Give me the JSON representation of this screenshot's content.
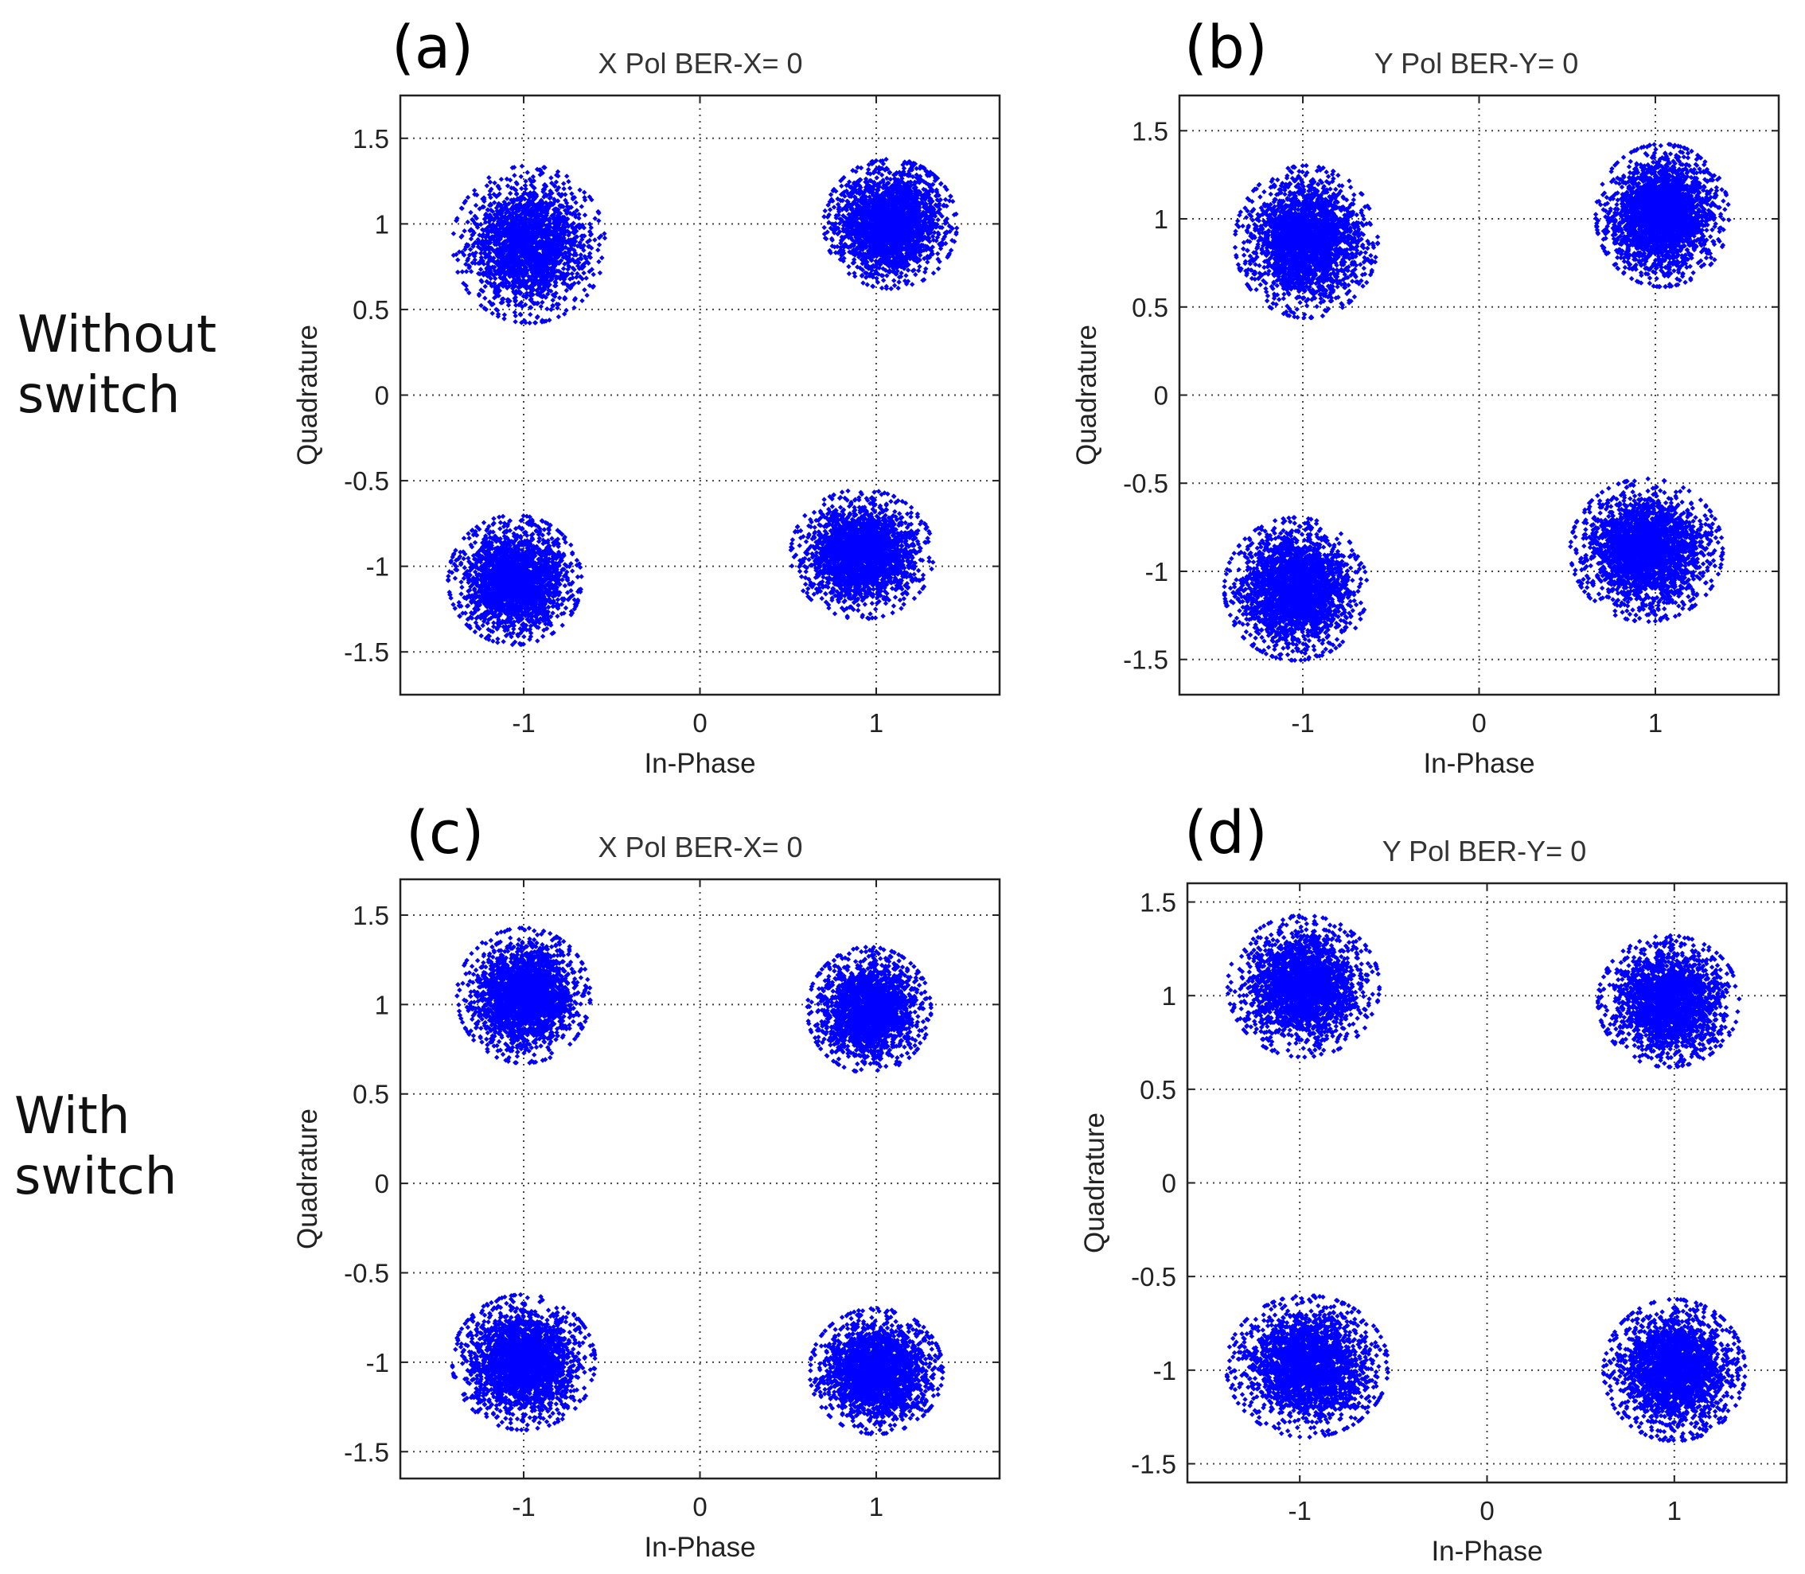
{
  "row_labels": {
    "top_line1": "Without",
    "top_line2": "switch",
    "bottom_line1": "With",
    "bottom_line2": "switch"
  },
  "style": {
    "marker_color": "#0000ff"
  },
  "chart_data": [
    {
      "type": "scatter",
      "panel": "(a)",
      "title": "X Pol   BER-X= 0",
      "xlabel": "In-Phase",
      "ylabel": "Quadrature",
      "xlim": [
        -1.7,
        1.7
      ],
      "ylim": [
        -1.75,
        1.75
      ],
      "xticks": [
        -1,
        0,
        1
      ],
      "yticks": [
        -1.5,
        -1,
        -0.5,
        0,
        0.5,
        1,
        1.5
      ],
      "grid": true,
      "clusters": [
        {
          "name": "Q2",
          "cx": -0.97,
          "cy": 0.88,
          "spread_x": 0.16,
          "spread_y": 0.17,
          "points": 2200
        },
        {
          "name": "Q1",
          "cx": 1.08,
          "cy": 1.0,
          "spread_x": 0.14,
          "spread_y": 0.14,
          "points": 2600
        },
        {
          "name": "Q3",
          "cx": -1.05,
          "cy": -1.08,
          "spread_x": 0.14,
          "spread_y": 0.14,
          "points": 2400
        },
        {
          "name": "Q4",
          "cx": 0.92,
          "cy": -0.93,
          "spread_x": 0.15,
          "spread_y": 0.14,
          "points": 2400
        }
      ]
    },
    {
      "type": "scatter",
      "panel": "(b)",
      "title": "Y Pol   BER-Y= 0",
      "xlabel": "In-Phase",
      "ylabel": "Quadrature",
      "xlim": [
        -1.7,
        1.7
      ],
      "ylim": [
        -1.7,
        1.7
      ],
      "xticks": [
        -1,
        0,
        1
      ],
      "yticks": [
        -1.5,
        -1,
        -0.5,
        0,
        0.5,
        1,
        1.5
      ],
      "grid": true,
      "clusters": [
        {
          "name": "Q2",
          "cx": -0.98,
          "cy": 0.87,
          "spread_x": 0.15,
          "spread_y": 0.16,
          "points": 2600
        },
        {
          "name": "Q1",
          "cx": 1.04,
          "cy": 1.02,
          "spread_x": 0.14,
          "spread_y": 0.15,
          "points": 2700
        },
        {
          "name": "Q3",
          "cx": -1.04,
          "cy": -1.1,
          "spread_x": 0.15,
          "spread_y": 0.15,
          "points": 2600
        },
        {
          "name": "Q4",
          "cx": 0.95,
          "cy": -0.88,
          "spread_x": 0.16,
          "spread_y": 0.15,
          "points": 2600
        }
      ]
    },
    {
      "type": "scatter",
      "panel": "(c)",
      "title": "X Pol   BER-X= 0",
      "xlabel": "In-Phase",
      "ylabel": "Quadrature",
      "xlim": [
        -1.7,
        1.7
      ],
      "ylim": [
        -1.65,
        1.7
      ],
      "xticks": [
        -1,
        0,
        1
      ],
      "yticks": [
        -1.5,
        -1,
        -0.5,
        0,
        0.5,
        1,
        1.5
      ],
      "grid": true,
      "clusters": [
        {
          "name": "Q2",
          "cx": -1.0,
          "cy": 1.05,
          "spread_x": 0.14,
          "spread_y": 0.14,
          "points": 2400
        },
        {
          "name": "Q1",
          "cx": 0.96,
          "cy": 0.97,
          "spread_x": 0.13,
          "spread_y": 0.13,
          "points": 2200
        },
        {
          "name": "Q3",
          "cx": -1.0,
          "cy": -1.0,
          "spread_x": 0.15,
          "spread_y": 0.14,
          "points": 2400
        },
        {
          "name": "Q4",
          "cx": 1.0,
          "cy": -1.05,
          "spread_x": 0.14,
          "spread_y": 0.13,
          "points": 2400
        }
      ]
    },
    {
      "type": "scatter",
      "panel": "(d)",
      "title": "Y Pol   BER-Y= 0",
      "xlabel": "In-Phase",
      "ylabel": "Quadrature",
      "xlim": [
        -1.6,
        1.6
      ],
      "ylim": [
        -1.6,
        1.6
      ],
      "xticks": [
        -1,
        0,
        1
      ],
      "yticks": [
        -1.5,
        -1,
        -0.5,
        0,
        0.5,
        1,
        1.5
      ],
      "grid": true,
      "clusters": [
        {
          "name": "Q2",
          "cx": -0.98,
          "cy": 1.05,
          "spread_x": 0.15,
          "spread_y": 0.14,
          "points": 2400
        },
        {
          "name": "Q1",
          "cx": 0.97,
          "cy": 0.97,
          "spread_x": 0.14,
          "spread_y": 0.13,
          "points": 2300
        },
        {
          "name": "Q3",
          "cx": -0.96,
          "cy": -0.98,
          "spread_x": 0.16,
          "spread_y": 0.14,
          "points": 2500
        },
        {
          "name": "Q4",
          "cx": 1.0,
          "cy": -1.0,
          "spread_x": 0.14,
          "spread_y": 0.14,
          "points": 2400
        }
      ]
    }
  ]
}
